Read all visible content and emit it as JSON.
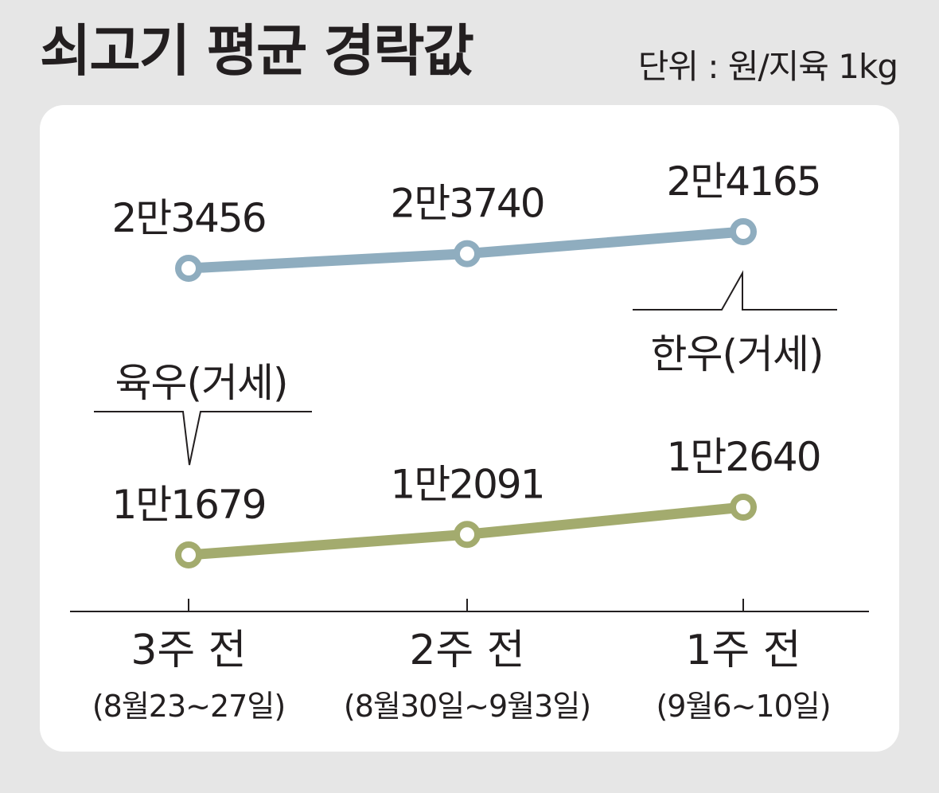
{
  "header": {
    "title": "쇠고기 평균 경락값",
    "unit": "단위 : 원/지육 1kg"
  },
  "chart_data": {
    "type": "line",
    "categories": [
      "3주 전",
      "2주 전",
      "1주 전"
    ],
    "category_dates": [
      "(8월23~27일)",
      "(8월30일~9월3일)",
      "(9월6~10일)"
    ],
    "series": [
      {
        "name": "한우(거세)",
        "values": [
          23456,
          23740,
          24165
        ],
        "labels": [
          "2만3456",
          "2만3740",
          "2만4165"
        ],
        "color": "#8fadbf"
      },
      {
        "name": "육우(거세)",
        "values": [
          11679,
          12091,
          12640
        ],
        "labels": [
          "1만1679",
          "1만2091",
          "1만2640"
        ],
        "color": "#a3ab6e"
      }
    ]
  }
}
